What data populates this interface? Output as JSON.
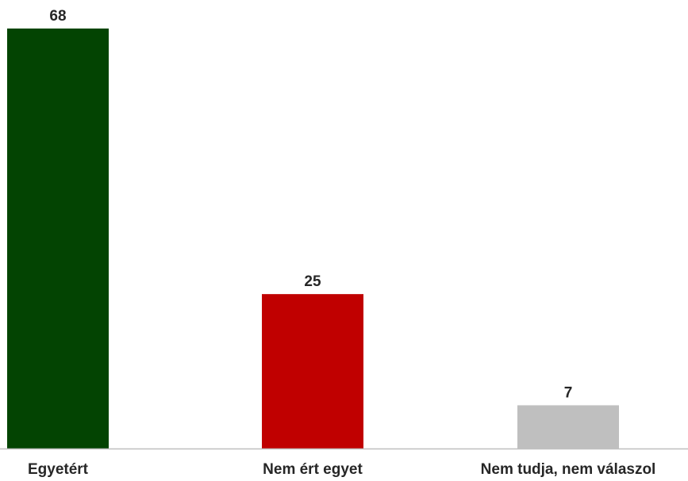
{
  "chart_data": {
    "type": "bar",
    "categories": [
      "Egyetért",
      "Nem ért egyet",
      "Nem tudja, nem válaszol"
    ],
    "values": [
      68,
      25,
      7
    ],
    "colors": [
      "#034402",
      "#c00000",
      "#bfbfbf"
    ],
    "axis_color": "#bfbfbf",
    "ylim": [
      0,
      68
    ],
    "grid": false,
    "legend": "none"
  }
}
